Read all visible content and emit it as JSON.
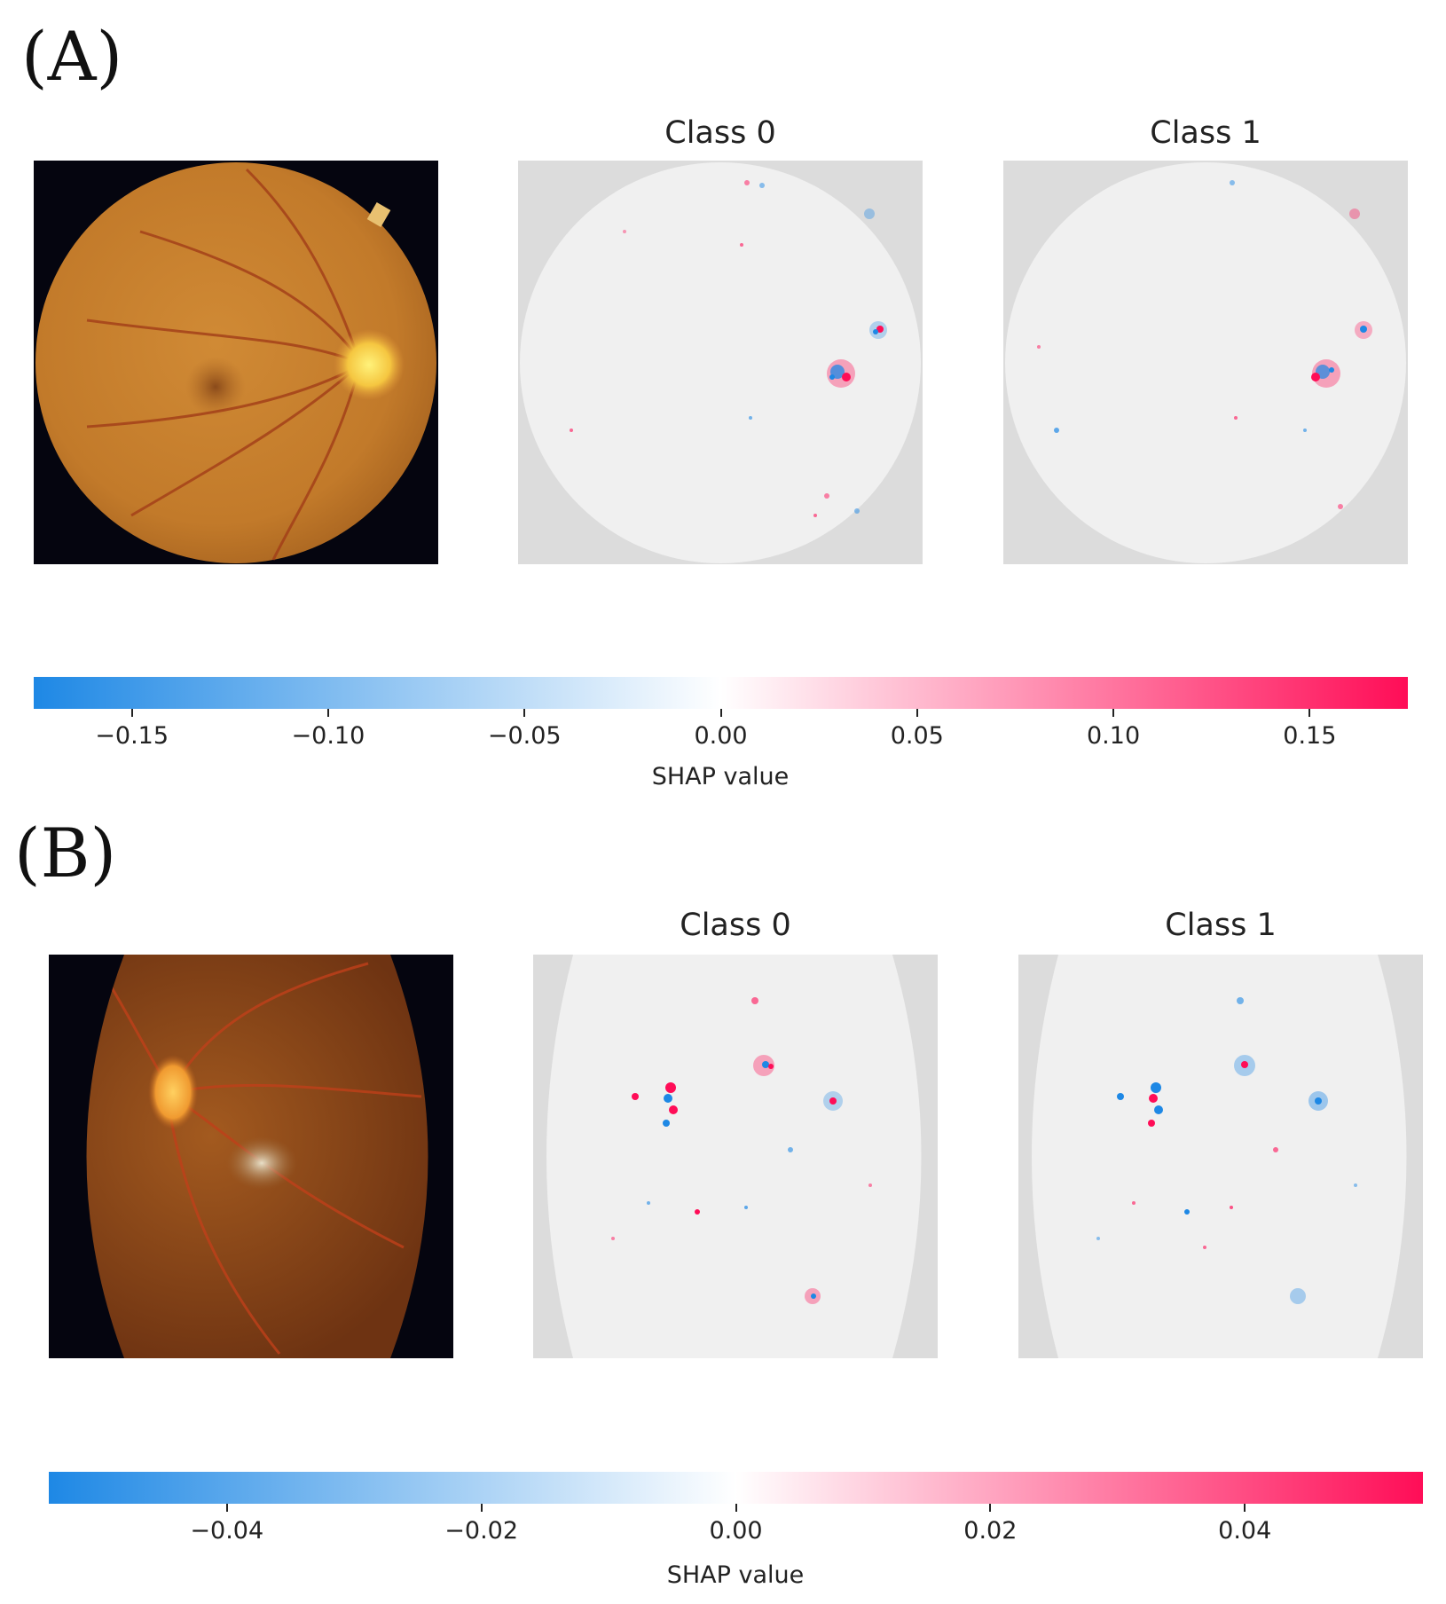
{
  "panels": [
    {
      "label": "(A)",
      "titles": [
        "Class 0",
        "Class 1"
      ],
      "colorbar": {
        "label": "SHAP value",
        "range": [
          -0.175,
          0.175
        ],
        "ticks": [
          -0.15,
          -0.1,
          -0.05,
          0.0,
          0.05,
          0.1,
          0.15
        ],
        "tick_labels": [
          "−0.15",
          "−0.10",
          "−0.05",
          "0.00",
          "0.05",
          "0.10",
          "0.15"
        ]
      }
    },
    {
      "label": "(B)",
      "titles": [
        "Class 0",
        "Class 1"
      ],
      "colorbar": {
        "label": "SHAP value",
        "range": [
          -0.054,
          0.054
        ],
        "ticks": [
          -0.04,
          -0.02,
          0.0,
          0.02,
          0.04
        ],
        "tick_labels": [
          "−0.04",
          "−0.02",
          "0.00",
          "0.02",
          "0.04"
        ]
      }
    }
  ],
  "chart_data": {
    "type": "heatmap",
    "colors": {
      "negative": "#1e88e5",
      "zero": "#ffffff",
      "positive": "#ff0d57",
      "background": "#dcdcdc"
    },
    "colorbar_scales": [
      {
        "panel": "(A)",
        "min": -0.175,
        "max": 0.175,
        "xlabel": "SHAP value"
      },
      {
        "panel": "(B)",
        "min": -0.054,
        "max": 0.054,
        "xlabel": "SHAP value"
      }
    ],
    "subplot_titles": [
      "Class 0",
      "Class 1"
    ]
  }
}
